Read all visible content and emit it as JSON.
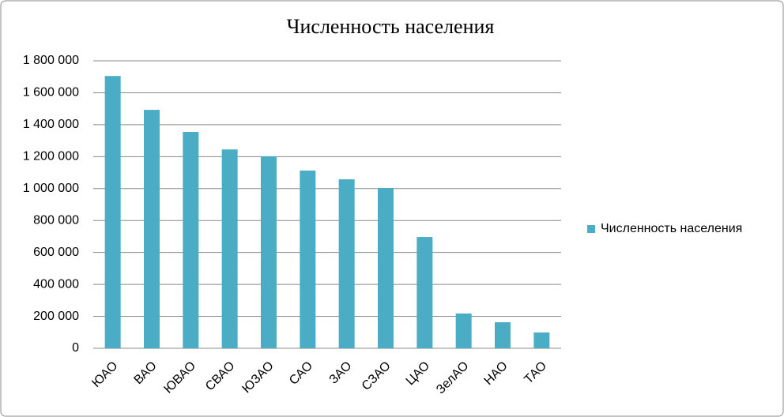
{
  "chart_data": {
    "type": "bar",
    "title": "Численность населения",
    "categories": [
      "ЮАО",
      "ВАО",
      "ЮВАО",
      "СВАО",
      "ЮЗАО",
      "САО",
      "ЗАО",
      "СЗАО",
      "ЦАО",
      "ЗелАО",
      "НАО",
      "ТАО"
    ],
    "series": [
      {
        "name": "Численность населения",
        "color": "#4bacc6",
        "values": [
          1705000,
          1493000,
          1355000,
          1245000,
          1202000,
          1113000,
          1058000,
          1004000,
          697000,
          218000,
          163000,
          99000
        ]
      }
    ],
    "ylim": [
      0,
      1800000
    ],
    "yticks": [
      0,
      {
        "value": 200000,
        "label": "200 000"
      },
      {
        "value": 400000,
        "label": "400 000"
      },
      {
        "value": 600000,
        "label": "600 000"
      },
      {
        "value": 800000,
        "label": "800 000"
      },
      {
        "value": 1000000,
        "label": "1 000 000"
      },
      {
        "value": 1200000,
        "label": "1 200 000"
      },
      {
        "value": 1400000,
        "label": "1 400 000"
      },
      {
        "value": 1600000,
        "label": "1 600 000"
      },
      {
        "value": 1800000,
        "label": "1 800 000"
      }
    ],
    "grid": true,
    "legend": "right"
  }
}
